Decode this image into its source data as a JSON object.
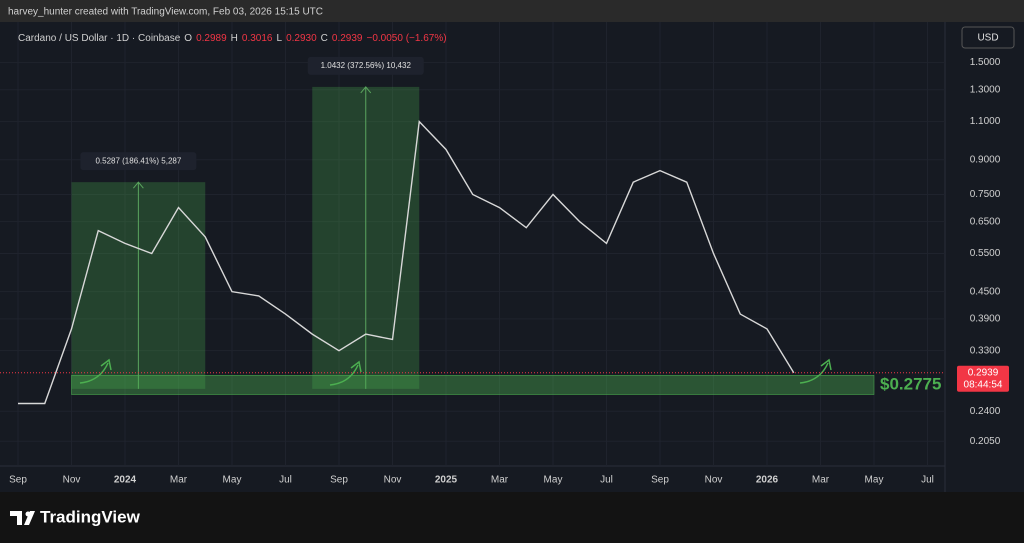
{
  "header": {
    "caption": "harvey_hunter created with TradingView.com, Feb 03, 2026 15:15 UTC",
    "currency_button": "USD",
    "brand": "TradingView"
  },
  "chart_data": {
    "type": "line",
    "log_scale": true,
    "grid": true,
    "symbol": "Cardano / US Dollar · 1D · Coinbase",
    "ohlc": [
      {
        "key": "O",
        "text": "0.2989"
      },
      {
        "key": "H",
        "text": "0.3016"
      },
      {
        "key": "L",
        "text": "0.2930"
      },
      {
        "key": "C",
        "text": "0.2939"
      }
    ],
    "change": "−0.0050 (−1.67%)",
    "x": [
      "2023-09",
      "2023-10",
      "2023-11",
      "2023-12",
      "2024-01",
      "2024-02",
      "2024-03",
      "2024-04",
      "2024-05",
      "2024-06",
      "2024-07",
      "2024-08",
      "2024-09",
      "2024-10",
      "2024-11",
      "2024-12",
      "2025-01",
      "2025-02",
      "2025-03",
      "2025-04",
      "2025-05",
      "2025-06",
      "2025-07",
      "2025-08",
      "2025-09",
      "2025-10",
      "2025-11",
      "2025-12",
      "2026-01",
      "2026-02"
    ],
    "series": [
      {
        "name": "ADA/USD",
        "color": "#d8d8d8",
        "values": [
          0.25,
          0.25,
          0.37,
          0.62,
          0.58,
          0.55,
          0.7,
          0.6,
          0.45,
          0.44,
          0.4,
          0.36,
          0.33,
          0.36,
          0.35,
          1.1,
          0.95,
          0.75,
          0.7,
          0.63,
          0.75,
          0.65,
          0.58,
          0.8,
          0.85,
          0.8,
          0.55,
          0.4,
          0.37,
          0.2939
        ]
      }
    ],
    "ylim": [
      0.18,
      1.78
    ],
    "yticks": [
      {
        "value": 1.5,
        "label": "1.5000"
      },
      {
        "value": 1.3,
        "label": "1.3000"
      },
      {
        "value": 1.1,
        "label": "1.1000"
      },
      {
        "value": 0.9,
        "label": "0.9000"
      },
      {
        "value": 0.75,
        "label": "0.7500"
      },
      {
        "value": 0.65,
        "label": "0.6500"
      },
      {
        "value": 0.55,
        "label": "0.5500"
      },
      {
        "value": 0.45,
        "label": "0.4500"
      },
      {
        "value": 0.39,
        "label": "0.3900"
      },
      {
        "value": 0.33,
        "label": "0.3300"
      },
      {
        "value": 0.24,
        "label": "0.2400"
      },
      {
        "value": 0.205,
        "label": "0.2050"
      }
    ],
    "xticks": [
      {
        "value": "2023-09",
        "label": "Sep"
      },
      {
        "value": "2023-11",
        "label": "Nov"
      },
      {
        "value": "2024-01",
        "label": "2024"
      },
      {
        "value": "2024-03",
        "label": "Mar"
      },
      {
        "value": "2024-05",
        "label": "May"
      },
      {
        "value": "2024-07",
        "label": "Jul"
      },
      {
        "value": "2024-09",
        "label": "Sep"
      },
      {
        "value": "2024-11",
        "label": "Nov"
      },
      {
        "value": "2025-01",
        "label": "2025"
      },
      {
        "value": "2025-03",
        "label": "Mar"
      },
      {
        "value": "2025-05",
        "label": "May"
      },
      {
        "value": "2025-07",
        "label": "Jul"
      },
      {
        "value": "2025-09",
        "label": "Sep"
      },
      {
        "value": "2025-11",
        "label": "Nov"
      },
      {
        "value": "2026-01",
        "label": "2026"
      },
      {
        "value": "2026-03",
        "label": "Mar"
      },
      {
        "value": "2026-05",
        "label": "May"
      },
      {
        "value": "2026-07",
        "label": "Jul"
      }
    ],
    "last_price": 0.2939,
    "countdown": "08:44:54",
    "zones": [
      {
        "label": "0.5287 (186.41%) 5,287",
        "x": [
          "2023-11",
          "2024-04"
        ],
        "range": [
          0.27,
          0.8
        ]
      },
      {
        "label": "1.0432 (372.56%) 10,432",
        "x": [
          "2024-08",
          "2024-12"
        ],
        "range": [
          0.27,
          1.32
        ]
      }
    ],
    "support": {
      "label": "$0.2775",
      "x": [
        "2023-11",
        "2026-05"
      ],
      "range": [
        0.262,
        0.29
      ]
    }
  }
}
